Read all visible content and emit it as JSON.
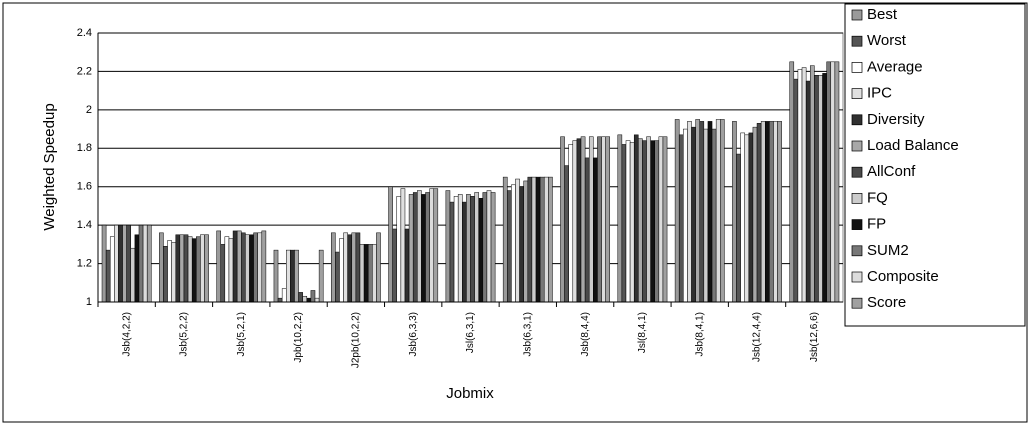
{
  "chart_data": {
    "type": "bar",
    "x_label": "Jobmix",
    "y_label": "Weighted Speedup",
    "categories": [
      "Jsb(4,2,2)",
      "Jsb(5,2,2)",
      "Jsb(5,2,1)",
      "Jpb(10,2,2)",
      "J2pb(10,2,2)",
      "Jsb(6,3,3)",
      "Jsl(6,3,1)",
      "Jsb(6,3,1)",
      "Jsb(8,4,4)",
      "Jsl(8,4,1)",
      "Jsb(8,4,1)",
      "Jsb(12,4,4)",
      "Jsb(12,6,6)"
    ],
    "series": [
      {
        "name": "Best",
        "color": "#9a9a9a",
        "values": [
          1.4,
          1.36,
          1.37,
          1.27,
          1.36,
          1.6,
          1.58,
          1.65,
          1.86,
          1.87,
          1.95,
          1.94,
          2.25
        ]
      },
      {
        "name": "Worst",
        "color": "#555555",
        "values": [
          1.27,
          1.29,
          1.3,
          1.02,
          1.26,
          1.38,
          1.52,
          1.58,
          1.71,
          1.82,
          1.87,
          1.77,
          2.16
        ]
      },
      {
        "name": "Average",
        "color": "#ffffff",
        "values": [
          1.34,
          1.32,
          1.34,
          1.07,
          1.33,
          1.55,
          1.55,
          1.61,
          1.82,
          1.84,
          1.9,
          1.88,
          2.21
        ]
      },
      {
        "name": "IPC",
        "color": "#e0e0e0",
        "values": [
          1.4,
          1.31,
          1.33,
          1.27,
          1.36,
          1.59,
          1.56,
          1.64,
          1.84,
          1.83,
          1.94,
          1.87,
          2.22
        ]
      },
      {
        "name": "Diversity",
        "color": "#303030",
        "values": [
          1.4,
          1.35,
          1.37,
          1.27,
          1.35,
          1.38,
          1.52,
          1.6,
          1.85,
          1.87,
          1.91,
          1.88,
          2.15
        ]
      },
      {
        "name": "Load Balance",
        "color": "#a8a8a8",
        "values": [
          1.4,
          1.35,
          1.37,
          1.27,
          1.36,
          1.56,
          1.56,
          1.63,
          1.86,
          1.85,
          1.95,
          1.91,
          2.23
        ]
      },
      {
        "name": "AllConf",
        "color": "#4a4a4a",
        "values": [
          1.4,
          1.35,
          1.36,
          1.05,
          1.36,
          1.57,
          1.55,
          1.65,
          1.75,
          1.84,
          1.94,
          1.93,
          2.18
        ]
      },
      {
        "name": "FQ",
        "color": "#cccccc",
        "values": [
          1.28,
          1.34,
          1.35,
          1.03,
          1.3,
          1.58,
          1.57,
          1.65,
          1.86,
          1.86,
          1.9,
          1.94,
          2.18
        ]
      },
      {
        "name": "FP",
        "color": "#111111",
        "values": [
          1.35,
          1.33,
          1.35,
          1.02,
          1.3,
          1.56,
          1.54,
          1.65,
          1.75,
          1.84,
          1.94,
          1.94,
          2.19
        ]
      },
      {
        "name": "SUM2",
        "color": "#777777",
        "values": [
          1.4,
          1.34,
          1.36,
          1.06,
          1.3,
          1.57,
          1.57,
          1.65,
          1.86,
          1.84,
          1.9,
          1.94,
          2.25
        ]
      },
      {
        "name": "Composite",
        "color": "#dcdcdc",
        "values": [
          1.4,
          1.35,
          1.36,
          1.02,
          1.3,
          1.59,
          1.58,
          1.65,
          1.86,
          1.86,
          1.95,
          1.94,
          2.25
        ]
      },
      {
        "name": "Score",
        "color": "#a0a0a0",
        "values": [
          1.4,
          1.35,
          1.37,
          1.27,
          1.36,
          1.59,
          1.57,
          1.65,
          1.86,
          1.86,
          1.95,
          1.94,
          2.25
        ]
      }
    ],
    "ylim": [
      1,
      2.4
    ],
    "yticks": [
      1,
      1.2,
      1.4,
      1.6,
      1.8,
      2,
      2.2,
      2.4
    ],
    "grid": true,
    "legend": "right"
  }
}
